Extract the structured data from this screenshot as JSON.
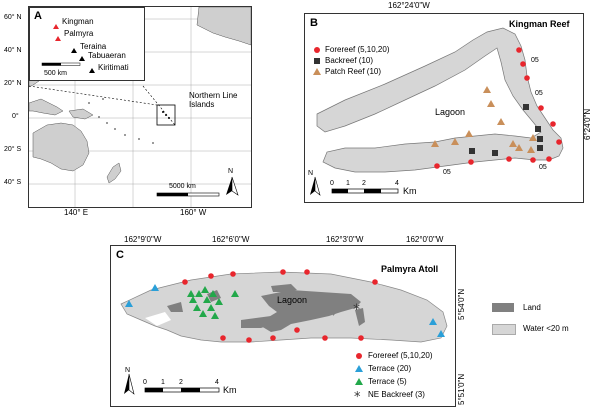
{
  "panelA": {
    "letter": "A",
    "inset_labels": [
      "Kingman",
      "Palmyra",
      "Teraina",
      "Tabuaeran",
      "Kiritimati"
    ],
    "inset_scale": "500 km",
    "main_scale": "5000 km",
    "region_label": "Northern Line Islands",
    "lat_ticks": [
      "60° N",
      "40° N",
      "20° N",
      "0°",
      "20° S",
      "40° S"
    ],
    "lon_ticks": [
      "140° E",
      "160° W"
    ],
    "north": "N"
  },
  "panelB": {
    "letter": "B",
    "title": "Kingman Reef",
    "top_coord": "162°24'0\"W",
    "side_coord": "6°24'0\"N",
    "lagoon": "Lagoon",
    "depth_labels": [
      "05",
      "05",
      "05",
      "05"
    ],
    "legend": [
      {
        "label": "Forereef (5,10,20)",
        "color": "#e8262d",
        "shape": "circle"
      },
      {
        "label": "Backreef (10)",
        "color": "#333333",
        "shape": "square"
      },
      {
        "label": "Patch Reef (10)",
        "color": "#c98f5a",
        "shape": "triangle"
      }
    ],
    "scale_ticks": [
      "0",
      "1",
      "2",
      "4"
    ],
    "scale_unit": "Km",
    "north": "N"
  },
  "panelC": {
    "letter": "C",
    "title": "Palmyra Atoll",
    "top_coords": [
      "162°9'0\"W",
      "162°6'0\"W",
      "162°3'0\"W",
      "162°0'0\"W"
    ],
    "side_coords": [
      "5°54'0\"N",
      "5°51'0\"N"
    ],
    "lagoon": "Lagoon",
    "scale_ticks": [
      "0",
      "1",
      "2",
      "4"
    ],
    "scale_unit": "Km",
    "north": "N"
  },
  "legendC": {
    "land": "Land",
    "water": "Water <20 m",
    "items": [
      {
        "label": "Forereef (5,10,20)",
        "color": "#e8262d",
        "shape": "circle"
      },
      {
        "label": "Terrace (20)",
        "color": "#2a9fd8",
        "shape": "triangle"
      },
      {
        "label": "Terrace (5)",
        "color": "#22a84a",
        "shape": "triangle"
      },
      {
        "label": "NE Backreef (3)",
        "color": "#333333",
        "shape": "asterisk"
      }
    ],
    "colors": {
      "land": "#808080",
      "water": "#d6d6d6"
    }
  }
}
